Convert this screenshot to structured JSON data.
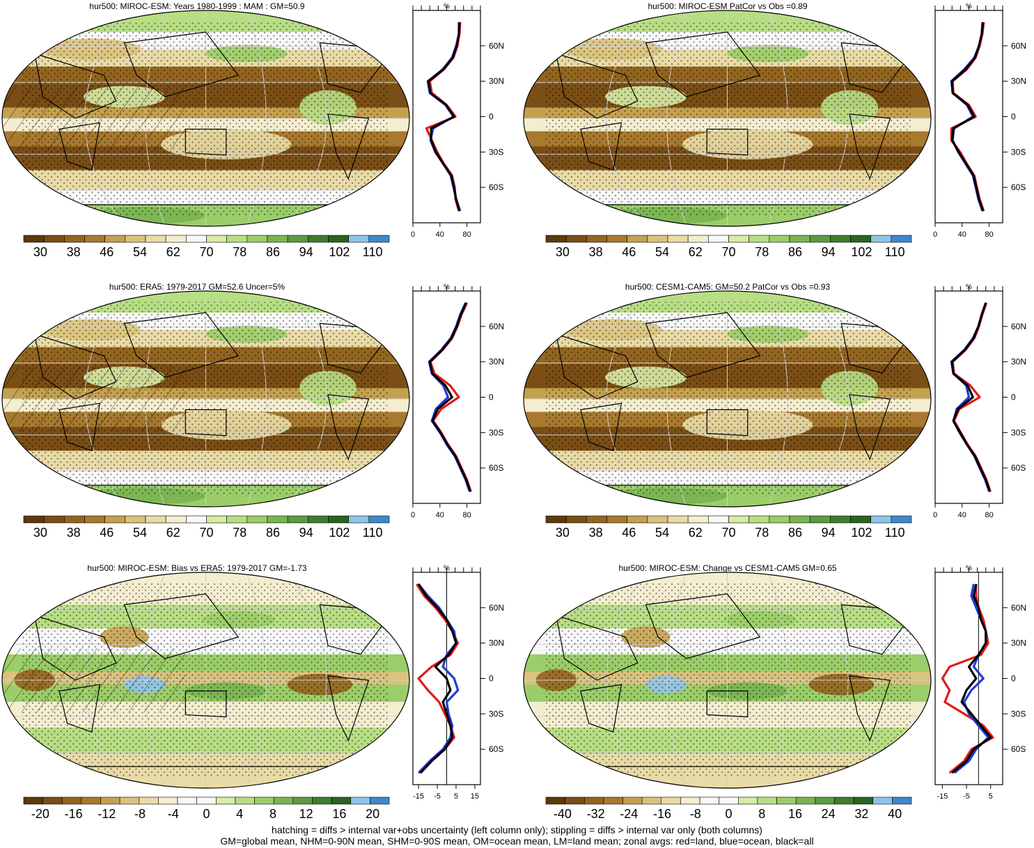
{
  "colors": {
    "full_scale": [
      "#5c3a0c",
      "#7a4e15",
      "#93651f",
      "#a8792e",
      "#c4a14f",
      "#d9c27c",
      "#e9dba6",
      "#f4edcf",
      "#f8f8f8",
      "#d6eba4",
      "#b8de84",
      "#9bcd69",
      "#79b551",
      "#5c9b41",
      "#3f7d2e",
      "#2a6420",
      "#8fc4ea",
      "#3f88cc"
    ],
    "diff_scale": [
      "#5c3a0c",
      "#7a4e15",
      "#93651f",
      "#a8792e",
      "#c4a14f",
      "#d9c27c",
      "#e9dba6",
      "#f4edcf",
      "#f8f8f8",
      "#f8f8f8",
      "#d6eba4",
      "#b8de84",
      "#9bcd69",
      "#79b551",
      "#5c9b41",
      "#3f7d2e",
      "#2a6420",
      "#8fc4ea",
      "#3f88cc"
    ],
    "land": "#e31a1c",
    "ocean": "#1f3bd6",
    "all": "#000000"
  },
  "footer": {
    "line1": "hatching = diffs > internal var+obs uncertainty (left column only); stippling = diffs > internal var only (both columns)",
    "line2": "GM=global mean, NHM=0-90N mean, SHM=0-90S mean, OM=ocean mean, LM=land mean; zonal avgs: red=land, blue=ocean, black=all"
  },
  "chart_data": [
    {
      "type": "heatmap",
      "title": "hur500: MIROC-ESM: Years 1980-1999 : MAM : GM=50.9",
      "colorbar_labels": [
        "30",
        "38",
        "46",
        "54",
        "62",
        "70",
        "78",
        "86",
        "94",
        "102",
        "110"
      ],
      "scale": "full",
      "hatching": true,
      "stippling": true,
      "zonal_profile": {
        "type": "line",
        "top_label": "%",
        "x_ticks": [
          "0",
          "40",
          "80"
        ],
        "xlim": [
          0,
          100
        ],
        "y_ticks": [
          "60N",
          "30N",
          "0",
          "30S",
          "60S"
        ],
        "y_tick_values": [
          60,
          30,
          0,
          -30,
          -60
        ],
        "latitudes": [
          80,
          70,
          60,
          50,
          40,
          30,
          20,
          10,
          0,
          -10,
          -20,
          -30,
          -40,
          -50,
          -60,
          -70,
          -80
        ],
        "series": [
          {
            "name": "land",
            "color": "red",
            "values": [
              70,
              69,
              66,
              60,
              46,
              25,
              28,
              50,
              63,
              20,
              28,
              36,
              46,
              58,
              62,
              63,
              68
            ]
          },
          {
            "name": "ocean",
            "color": "blue",
            "values": [
              68,
              68,
              64,
              58,
              44,
              22,
              25,
              48,
              60,
              30,
              26,
              33,
              45,
              56,
              60,
              64,
              70
            ]
          },
          {
            "name": "all",
            "color": "black",
            "values": [
              69,
              68,
              65,
              59,
              45,
              23,
              26,
              49,
              61,
              27,
              27,
              34,
              45,
              57,
              61,
              64,
              69
            ]
          }
        ]
      }
    },
    {
      "type": "heatmap",
      "title": "hur500: MIROC-ESM PatCor vs Obs =0.89",
      "colorbar_labels": [
        "30",
        "38",
        "46",
        "54",
        "62",
        "70",
        "78",
        "86",
        "94",
        "102",
        "110"
      ],
      "scale": "full",
      "hatching": false,
      "stippling": true,
      "zonal_profile": {
        "type": "line",
        "top_label": "%",
        "x_ticks": [
          "0",
          "40",
          "80"
        ],
        "xlim": [
          0,
          100
        ],
        "y_ticks": [
          "60N",
          "30N",
          "0",
          "30S",
          "60S"
        ],
        "y_tick_values": [
          60,
          30,
          0,
          -30,
          -60
        ],
        "latitudes": [
          80,
          70,
          60,
          50,
          40,
          30,
          20,
          10,
          0,
          -10,
          -20,
          -30,
          -40,
          -50,
          -60,
          -70,
          -80
        ],
        "series": [
          {
            "name": "land",
            "color": "red",
            "values": [
              72,
              70,
              66,
              60,
              47,
              26,
              27,
              50,
              60,
              24,
              24,
              37,
              47,
              58,
              62,
              66,
              72
            ]
          },
          {
            "name": "ocean",
            "color": "blue",
            "values": [
              70,
              69,
              65,
              58,
              43,
              24,
              26,
              47,
              56,
              28,
              26,
              34,
              45,
              56,
              60,
              64,
              70
            ]
          },
          {
            "name": "all",
            "color": "black",
            "values": [
              71,
              69,
              65,
              59,
              45,
              25,
              26,
              48,
              58,
              27,
              25,
              35,
              46,
              57,
              61,
              65,
              71
            ]
          }
        ]
      }
    },
    {
      "type": "heatmap",
      "title": "hur500: ERA5: 1979-2017 GM=52.6 Uncer=5%",
      "colorbar_labels": [
        "30",
        "38",
        "46",
        "54",
        "62",
        "70",
        "78",
        "86",
        "94",
        "102",
        "110"
      ],
      "scale": "full",
      "hatching": true,
      "stippling": true,
      "zonal_profile": {
        "type": "line",
        "top_label": "%",
        "x_ticks": [
          "0",
          "40",
          "80"
        ],
        "xlim": [
          0,
          100
        ],
        "y_ticks": [
          "60N",
          "30N",
          "0",
          "30S",
          "60S"
        ],
        "y_tick_values": [
          60,
          30,
          0,
          -30,
          -60
        ],
        "latitudes": [
          80,
          70,
          60,
          50,
          40,
          30,
          20,
          10,
          0,
          -10,
          -20,
          -30,
          -40,
          -50,
          -60,
          -70,
          -80
        ],
        "series": [
          {
            "name": "land",
            "color": "red",
            "values": [
              80,
              72,
              66,
              58,
              44,
              26,
              32,
              55,
              68,
              42,
              30,
              42,
              52,
              64,
              72,
              80,
              86
            ]
          },
          {
            "name": "ocean",
            "color": "blue",
            "values": [
              78,
              70,
              64,
              56,
              42,
              24,
              28,
              45,
              52,
              34,
              28,
              40,
              50,
              62,
              70,
              78,
              84
            ]
          },
          {
            "name": "all",
            "color": "black",
            "values": [
              79,
              71,
              65,
              57,
              43,
              25,
              29,
              48,
              58,
              37,
              29,
              41,
              51,
              63,
              71,
              79,
              85
            ]
          }
        ]
      }
    },
    {
      "type": "heatmap",
      "title": "hur500: CESM1-CAM5: GM=50.2 PatCor vs Obs =0.93",
      "colorbar_labels": [
        "30",
        "38",
        "46",
        "54",
        "62",
        "70",
        "78",
        "86",
        "94",
        "102",
        "110"
      ],
      "scale": "full",
      "hatching": false,
      "stippling": true,
      "zonal_profile": {
        "type": "line",
        "top_label": "%",
        "x_ticks": [
          "0",
          "40",
          "80"
        ],
        "xlim": [
          0,
          100
        ],
        "y_ticks": [
          "60N",
          "30N",
          "0",
          "30S",
          "60S"
        ],
        "y_tick_values": [
          60,
          30,
          0,
          -30,
          -60
        ],
        "latitudes": [
          80,
          70,
          60,
          50,
          40,
          30,
          20,
          10,
          0,
          -10,
          -20,
          -30,
          -40,
          -50,
          -60,
          -70,
          -80
        ],
        "series": [
          {
            "name": "land",
            "color": "red",
            "values": [
              76,
              70,
              65,
              58,
              45,
              26,
              28,
              52,
              66,
              36,
              28,
              38,
              48,
              60,
              68,
              76,
              82
            ]
          },
          {
            "name": "ocean",
            "color": "blue",
            "values": [
              75,
              69,
              64,
              56,
              43,
              24,
              27,
              46,
              50,
              32,
              27,
              36,
              47,
              58,
              66,
              74,
              80
            ]
          },
          {
            "name": "all",
            "color": "black",
            "values": [
              75,
              69,
              64,
              57,
              44,
              25,
              27,
              48,
              56,
              34,
              27,
              37,
              47,
              59,
              67,
              75,
              81
            ]
          }
        ]
      }
    },
    {
      "type": "heatmap",
      "title": "hur500: MIROC-ESM: Bias vs ERA5: 1979-2017 GM=-1.73",
      "colorbar_labels": [
        "-20",
        "-16",
        "-12",
        "-8",
        "-4",
        "0",
        "4",
        "8",
        "12",
        "16",
        "20"
      ],
      "scale": "diff",
      "hatching": true,
      "stippling": true,
      "zonal_profile": {
        "type": "line",
        "top_label": "%",
        "x_ticks": [
          "-15",
          "-5",
          "5",
          "15"
        ],
        "xlim": [
          -18,
          18
        ],
        "y_ticks": [
          "60N",
          "30N",
          "0",
          "30S",
          "60S"
        ],
        "y_tick_values": [
          60,
          30,
          0,
          -30,
          -60
        ],
        "zero_line": true,
        "latitudes": [
          80,
          70,
          60,
          50,
          40,
          30,
          20,
          10,
          0,
          -10,
          -20,
          -30,
          -40,
          -50,
          -60,
          -70,
          -80
        ],
        "series": [
          {
            "name": "land",
            "color": "red",
            "values": [
              -16,
              -12,
              -6,
              -1,
              3,
              6,
              2,
              -8,
              -15,
              -10,
              -4,
              -1,
              2,
              4,
              -1,
              -8,
              -14
            ]
          },
          {
            "name": "ocean",
            "color": "blue",
            "values": [
              -15,
              -10,
              -4,
              0,
              4,
              5,
              0,
              -2,
              4,
              6,
              0,
              1,
              3,
              2,
              -2,
              -9,
              -15
            ]
          },
          {
            "name": "all",
            "color": "black",
            "values": [
              -15,
              -11,
              -5,
              0,
              3,
              5,
              1,
              -6,
              0,
              2,
              -2,
              0,
              2,
              3,
              -1,
              -8,
              -14
            ]
          }
        ]
      }
    },
    {
      "type": "heatmap",
      "title": "hur500: MIROC-ESM: Change vs CESM1-CAM5 GM=0.65",
      "colorbar_labels": [
        "-40",
        "-32",
        "-24",
        "-16",
        "-8",
        "0",
        "8",
        "16",
        "24",
        "32",
        "40"
      ],
      "scale": "diff",
      "hatching": false,
      "stippling": true,
      "zonal_profile": {
        "type": "line",
        "top_label": "%",
        "x_ticks": [
          "-15",
          "-5",
          "5"
        ],
        "xlim": [
          -18,
          10
        ],
        "y_ticks": [
          "60N",
          "30N",
          "0",
          "30S",
          "60S"
        ],
        "y_tick_values": [
          60,
          30,
          0,
          -30,
          -60
        ],
        "zero_line": true,
        "latitudes": [
          80,
          70,
          60,
          50,
          40,
          30,
          20,
          10,
          0,
          -10,
          -20,
          -30,
          -40,
          -50,
          -60,
          -70,
          -80
        ],
        "series": [
          {
            "name": "land",
            "color": "red",
            "values": [
              -1,
              -1,
              0,
              2,
              3,
              4,
              1,
              -12,
              -15,
              -12,
              -14,
              -6,
              2,
              6,
              -3,
              -6,
              -12
            ]
          },
          {
            "name": "ocean",
            "color": "blue",
            "values": [
              -2,
              -3,
              -1,
              1,
              3,
              3,
              0,
              -2,
              2,
              -3,
              -6,
              -4,
              0,
              4,
              -1,
              -4,
              -10
            ]
          },
          {
            "name": "all",
            "color": "black",
            "values": [
              -1,
              -2,
              0,
              1,
              3,
              3,
              0,
              -4,
              -1,
              -5,
              -7,
              -3,
              1,
              5,
              -2,
              -5,
              -11
            ]
          }
        ]
      }
    }
  ]
}
